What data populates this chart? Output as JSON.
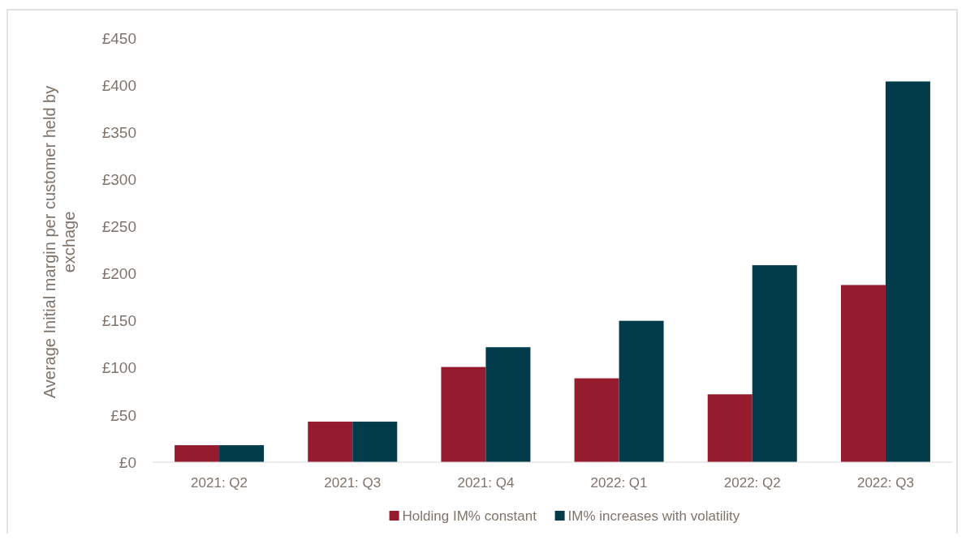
{
  "chart_data": {
    "type": "bar",
    "ylabel": "Average Initial margin per customer held by exchage",
    "categories": [
      "2021: Q2",
      "2021: Q3",
      "2021: Q4",
      "2022: Q1",
      "2022: Q2",
      "2022: Q3"
    ],
    "series": [
      {
        "name": "Holding IM% constant",
        "color": "#951b2f",
        "values": [
          18,
          43,
          101,
          89,
          72,
          188
        ]
      },
      {
        "name": "IM% increases with volatility",
        "color": "#023c4b",
        "values": [
          18,
          43,
          122,
          150,
          209,
          404
        ]
      }
    ],
    "ylim": [
      0,
      450
    ],
    "yticks": [
      {
        "value": 0,
        "label": "£0"
      },
      {
        "value": 50,
        "label": "£50"
      },
      {
        "value": 100,
        "label": "£100"
      },
      {
        "value": 150,
        "label": "£150"
      },
      {
        "value": 200,
        "label": "£200"
      },
      {
        "value": 250,
        "label": "£250"
      },
      {
        "value": 300,
        "label": "£300"
      },
      {
        "value": 350,
        "label": "£350"
      },
      {
        "value": 400,
        "label": "£400"
      },
      {
        "value": 450,
        "label": "£450"
      }
    ],
    "grid": false,
    "legend": "bottom"
  }
}
